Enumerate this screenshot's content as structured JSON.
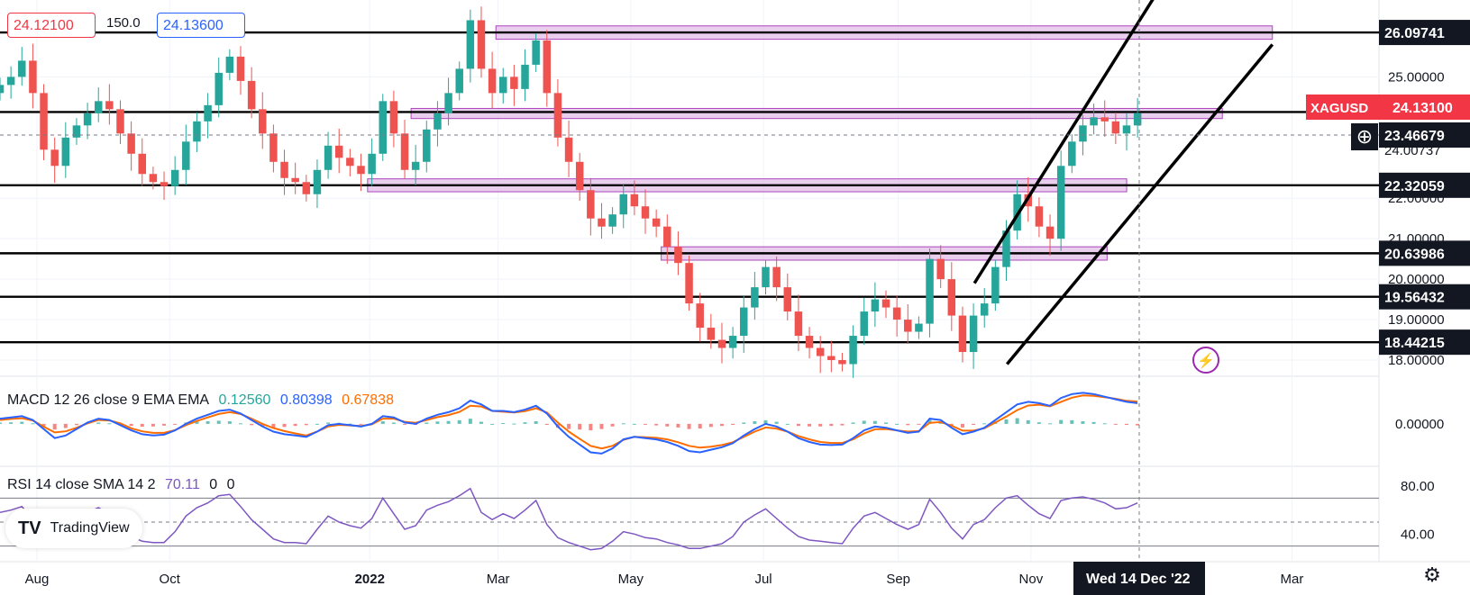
{
  "header": {
    "bid": "24.12100",
    "spread": "150.0",
    "ask": "24.13600"
  },
  "symbol_tag": {
    "label": "XAGUSD",
    "value": "24.13100"
  },
  "crosshair_price": "23.46679",
  "hidden_price_fragment": "24.00737",
  "time_cursor_label": "Wed 14 Dec '22",
  "colors": {
    "up": "#26a69a",
    "down": "#ef5350",
    "zone_fill": "#e1bee7",
    "zone_stroke": "#ab47bc",
    "macd_line": "#2962ff",
    "signal_line": "#ff6d00",
    "rsi": "#7e57c2",
    "level_line": "#000000",
    "symbol_tag_bg": "#f23645",
    "level_tag_bg": "#131722"
  },
  "chart_data": [
    {
      "type": "candlestick",
      "symbol": "XAGUSD",
      "x_tick_labels": [
        "Aug",
        "Oct",
        "2022",
        "Mar",
        "May",
        "Jul",
        "Sep",
        "Nov",
        "Mar"
      ],
      "y_tick_labels": [
        "25.00000",
        "22.00000",
        "21.00000",
        "20.00000",
        "19.00000",
        "18.00000"
      ],
      "ylim": [
        17.6,
        26.9
      ],
      "price_axis_side": "right",
      "time_range": [
        "2021-07-15",
        "2023-04-10"
      ],
      "horizontal_levels": [
        26.09741,
        24.131,
        22.32059,
        20.63986,
        19.56432,
        18.44215
      ],
      "level_labels": [
        "26.09741",
        "22.32059",
        "20.63986",
        "19.56432",
        "18.44215"
      ],
      "resistance_zones": [
        {
          "from": "2022-02-28",
          "to": "2023-02-20",
          "low": 25.93,
          "high": 26.26
        },
        {
          "from": "2022-01-20",
          "to": "2023-01-28",
          "low": 23.97,
          "high": 24.22
        },
        {
          "from": "2021-12-31",
          "to": "2022-12-15",
          "low": 22.16,
          "high": 22.48
        },
        {
          "from": "2022-05-15",
          "to": "2022-12-06",
          "low": 20.47,
          "high": 20.8
        }
      ],
      "channel_lines": [
        {
          "from": [
            "2022-10-06",
            19.9
          ],
          "to": [
            "2022-12-28",
            27.0
          ]
        },
        {
          "from": [
            "2022-10-21",
            17.9
          ],
          "to": [
            "2023-02-20",
            25.8
          ]
        }
      ],
      "close": [
        24.8,
        25.0,
        25.4,
        24.6,
        23.2,
        22.8,
        23.5,
        23.8,
        24.1,
        24.4,
        24.2,
        23.6,
        23.1,
        22.6,
        22.4,
        22.3,
        22.7,
        23.4,
        23.9,
        24.3,
        25.1,
        25.5,
        24.9,
        24.2,
        23.6,
        22.9,
        22.5,
        22.4,
        22.1,
        22.7,
        23.3,
        23.0,
        22.8,
        22.6,
        23.1,
        24.4,
        23.6,
        22.7,
        22.9,
        23.7,
        24.1,
        24.6,
        25.2,
        26.4,
        25.2,
        24.6,
        25.0,
        24.7,
        25.3,
        25.9,
        24.6,
        23.5,
        22.9,
        22.2,
        21.5,
        21.3,
        21.6,
        22.1,
        21.8,
        21.5,
        21.3,
        20.8,
        20.4,
        19.4,
        18.8,
        18.5,
        18.3,
        18.6,
        19.3,
        19.8,
        20.3,
        19.8,
        19.2,
        18.6,
        18.3,
        18.1,
        18.0,
        17.9,
        18.6,
        19.2,
        19.5,
        19.3,
        19.0,
        18.7,
        18.9,
        20.5,
        20.0,
        19.1,
        18.2,
        19.1,
        19.4,
        20.3,
        21.2,
        22.1,
        21.8,
        21.3,
        21.0,
        22.8,
        23.4,
        23.8,
        24.0,
        23.9,
        23.6,
        23.8,
        24.1
      ]
    },
    {
      "type": "line",
      "name": "MACD 12 26 close 9 EMA EMA",
      "values_shown": [
        "0.12560",
        "0.80398",
        "0.67838"
      ],
      "y_tick_labels": [
        "0.00000"
      ],
      "series": [
        {
          "name": "histogram",
          "values": [
            0.05,
            0.06,
            0.08,
            0.02,
            -0.09,
            -0.22,
            -0.16,
            -0.05,
            0.03,
            0.05,
            0.02,
            -0.03,
            -0.08,
            -0.11,
            -0.1,
            -0.07,
            -0.01,
            0.05,
            0.09,
            0.1,
            0.12,
            0.1,
            0.02,
            -0.05,
            -0.1,
            -0.14,
            -0.12,
            -0.08,
            -0.05,
            0.0,
            0.05,
            0.04,
            0.01,
            -0.02,
            0.02,
            0.1,
            0.05,
            -0.03,
            -0.04,
            0.05,
            0.09,
            0.11,
            0.14,
            0.2,
            0.08,
            0.0,
            0.03,
            0.01,
            0.06,
            0.1,
            -0.04,
            -0.15,
            -0.2,
            -0.22,
            -0.25,
            -0.2,
            -0.1,
            0.02,
            0.0,
            -0.03,
            -0.06,
            -0.1,
            -0.14,
            -0.2,
            -0.18,
            -0.12,
            -0.08,
            -0.04,
            0.05,
            0.1,
            0.14,
            0.08,
            0.0,
            -0.08,
            -0.1,
            -0.1,
            -0.08,
            -0.06,
            0.05,
            0.12,
            0.11,
            0.05,
            0.0,
            -0.05,
            -0.02,
            0.16,
            0.08,
            -0.08,
            -0.14,
            -0.04,
            0.02,
            0.1,
            0.17,
            0.22,
            0.14,
            0.06,
            0.02,
            0.15,
            0.14,
            0.1,
            0.07,
            0.02,
            -0.02,
            -0.04,
            -0.06
          ]
        },
        {
          "name": "macd",
          "values": [
            0.2,
            0.25,
            0.3,
            0.15,
            -0.2,
            -0.55,
            -0.45,
            -0.2,
            0.05,
            0.2,
            0.15,
            -0.05,
            -0.25,
            -0.4,
            -0.45,
            -0.42,
            -0.25,
            0.0,
            0.2,
            0.35,
            0.5,
            0.55,
            0.4,
            0.15,
            -0.1,
            -0.3,
            -0.4,
            -0.45,
            -0.5,
            -0.3,
            -0.05,
            0.0,
            -0.05,
            -0.1,
            0.0,
            0.3,
            0.25,
            0.05,
            0.0,
            0.2,
            0.35,
            0.45,
            0.6,
            0.9,
            0.75,
            0.5,
            0.5,
            0.45,
            0.55,
            0.7,
            0.4,
            -0.1,
            -0.5,
            -0.8,
            -1.1,
            -1.15,
            -0.95,
            -0.6,
            -0.5,
            -0.55,
            -0.6,
            -0.7,
            -0.85,
            -1.05,
            -1.1,
            -1.0,
            -0.9,
            -0.75,
            -0.45,
            -0.2,
            0.0,
            -0.1,
            -0.3,
            -0.55,
            -0.7,
            -0.8,
            -0.82,
            -0.8,
            -0.55,
            -0.25,
            -0.1,
            -0.15,
            -0.25,
            -0.35,
            -0.3,
            0.2,
            0.15,
            -0.15,
            -0.4,
            -0.3,
            -0.15,
            0.15,
            0.45,
            0.75,
            0.85,
            0.8,
            0.7,
            1.0,
            1.15,
            1.2,
            1.15,
            1.05,
            0.95,
            0.85,
            0.8
          ]
        },
        {
          "name": "signal",
          "values": [
            0.15,
            0.19,
            0.22,
            0.13,
            -0.11,
            -0.33,
            -0.29,
            -0.15,
            0.02,
            0.15,
            0.13,
            0.02,
            -0.17,
            -0.29,
            -0.35,
            -0.35,
            -0.24,
            -0.05,
            0.11,
            0.25,
            0.38,
            0.45,
            0.38,
            0.2,
            0.0,
            -0.16,
            -0.28,
            -0.37,
            -0.45,
            -0.3,
            -0.1,
            -0.04,
            -0.06,
            -0.08,
            -0.02,
            0.2,
            0.2,
            0.08,
            0.04,
            0.15,
            0.26,
            0.34,
            0.46,
            0.7,
            0.67,
            0.5,
            0.47,
            0.44,
            0.49,
            0.6,
            0.44,
            0.05,
            -0.3,
            -0.58,
            -0.85,
            -0.95,
            -0.85,
            -0.62,
            -0.5,
            -0.52,
            -0.54,
            -0.6,
            -0.71,
            -0.85,
            -0.92,
            -0.88,
            -0.82,
            -0.71,
            -0.5,
            -0.3,
            -0.14,
            -0.18,
            -0.3,
            -0.47,
            -0.6,
            -0.7,
            -0.74,
            -0.74,
            -0.6,
            -0.37,
            -0.21,
            -0.2,
            -0.25,
            -0.3,
            -0.28,
            0.04,
            0.07,
            -0.07,
            -0.26,
            -0.26,
            -0.17,
            0.05,
            0.28,
            0.53,
            0.71,
            0.74,
            0.68,
            0.85,
            1.01,
            1.1,
            1.08,
            1.03,
            0.97,
            0.89,
            0.86
          ]
        }
      ]
    },
    {
      "type": "line",
      "name": "RSI 14 close SMA 14 2",
      "values_shown": [
        "70.11",
        "0",
        "0"
      ],
      "y_tick_labels": [
        "80.00",
        "40.00"
      ],
      "guides": [
        70,
        50,
        30
      ],
      "series": [
        {
          "name": "rsi",
          "values": [
            58,
            60,
            63,
            52,
            35,
            32,
            45,
            52,
            58,
            62,
            57,
            46,
            38,
            34,
            33,
            33,
            42,
            55,
            62,
            66,
            72,
            73,
            63,
            52,
            44,
            36,
            33,
            33,
            32,
            44,
            55,
            50,
            47,
            45,
            53,
            70,
            57,
            44,
            47,
            60,
            64,
            67,
            72,
            78,
            58,
            52,
            57,
            53,
            60,
            68,
            48,
            37,
            33,
            30,
            27,
            28,
            34,
            42,
            40,
            37,
            36,
            33,
            31,
            28,
            28,
            30,
            32,
            38,
            50,
            56,
            61,
            53,
            45,
            38,
            35,
            34,
            33,
            32,
            45,
            55,
            58,
            53,
            48,
            44,
            48,
            69,
            58,
            45,
            36,
            48,
            52,
            62,
            70,
            72,
            64,
            57,
            53,
            68,
            70,
            71,
            69,
            66,
            61,
            62,
            66
          ]
        }
      ]
    }
  ]
}
